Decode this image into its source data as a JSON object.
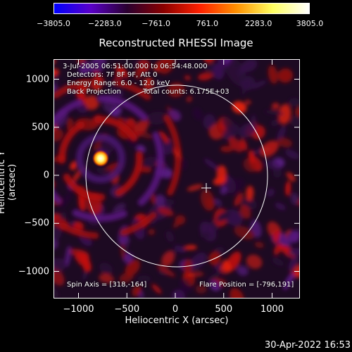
{
  "colorbar": {
    "labels": [
      "−3805.0",
      "−2283.0",
      "−761.0",
      "761.0",
      "2283.0",
      "3805.0"
    ],
    "colors": [
      "#0000ff",
      "#5a00c8",
      "#2a0030",
      "#8a0000",
      "#ff2000",
      "#ff9000",
      "#ffff60",
      "#ffffff"
    ]
  },
  "title": "Reconstructed RHESSI Image",
  "info": {
    "time_range": "3-Jul-2005 06:51:00.000 to 06:54:48.000",
    "detectors": "Detectors: 7F 8F 9F, Att 0",
    "energy": "Energy Range: 6.0 - 12.0 keV",
    "method": "Back Projection",
    "counts": "Total counts: 6.175E+03",
    "spin_axis": "Spin Axis = [318,-164]",
    "flare_position": "Flare Position = [-796,191]"
  },
  "axes": {
    "xlabel": "Heliocentric X (arcsec)",
    "ylabel": "Heliocentric Y (arcsec)",
    "xticks": [
      "−1000",
      "−500",
      "0",
      "500",
      "1000"
    ],
    "yticks": [
      "1000",
      "500",
      "0",
      "−500",
      "−1000"
    ]
  },
  "date_stamp": "30-Apr-2022 16:53"
}
